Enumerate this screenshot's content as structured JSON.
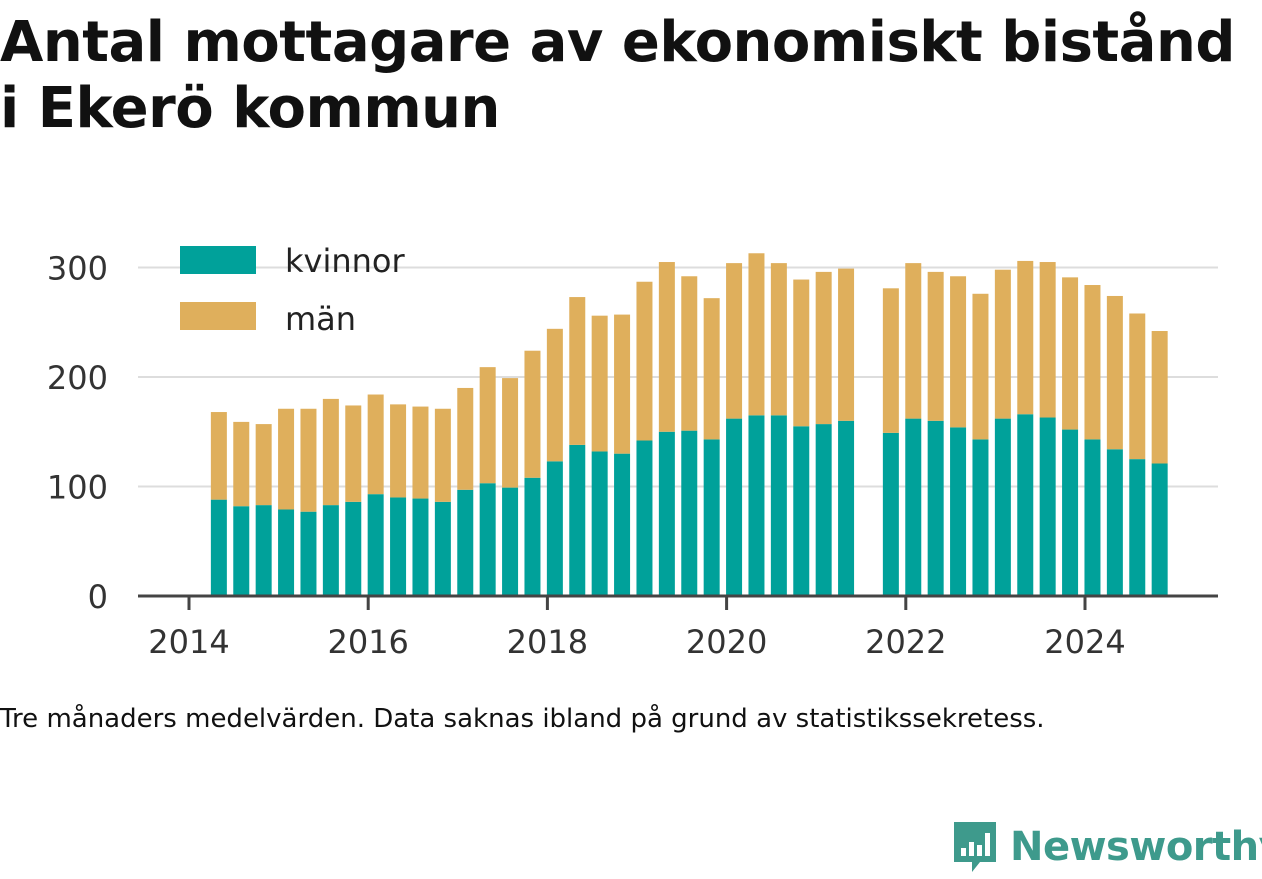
{
  "title": "Antal mottagare av ekonomiskt bistånd i Ekerö kommun",
  "caption": "Tre månaders medelvärden. Data saknas ibland på grund av statistikssekretess.",
  "brand": "Newsworthy",
  "colors": {
    "kvinnor": "#00a19a",
    "man": "#dfaf5c",
    "grid": "#dddddd",
    "axis": "#444444",
    "brand": "#3e9a8c"
  },
  "chart_data": {
    "type": "bar",
    "stacked": true,
    "x_ticks": [
      "2014",
      "2016",
      "2018",
      "2020",
      "2022",
      "2024"
    ],
    "y_ticks": [
      0,
      100,
      200,
      300
    ],
    "ylim": [
      0,
      330
    ],
    "grid": true,
    "legend_position": "top-left",
    "x": [
      "2014-05",
      "2014-08",
      "2014-11",
      "2015-02",
      "2015-05",
      "2015-08",
      "2015-11",
      "2016-02",
      "2016-05",
      "2016-08",
      "2016-11",
      "2017-02",
      "2017-05",
      "2017-08",
      "2017-11",
      "2018-02",
      "2018-05",
      "2018-08",
      "2018-11",
      "2019-02",
      "2019-05",
      "2019-08",
      "2019-11",
      "2020-02",
      "2020-05",
      "2020-08",
      "2020-11",
      "2021-02",
      "2021-05",
      "2021-08",
      "2021-11",
      "2022-02",
      "2022-05",
      "2022-08",
      "2022-11",
      "2023-02",
      "2023-05",
      "2023-08",
      "2023-11",
      "2024-02",
      "2024-05",
      "2024-08",
      "2024-11"
    ],
    "series": [
      {
        "name": "kvinnor",
        "values": [
          88,
          82,
          83,
          79,
          77,
          83,
          86,
          93,
          90,
          89,
          86,
          97,
          103,
          99,
          108,
          123,
          138,
          132,
          130,
          142,
          150,
          151,
          143,
          162,
          165,
          165,
          155,
          157,
          160,
          null,
          149,
          162,
          160,
          154,
          143,
          162,
          166,
          163,
          152,
          143,
          134,
          125,
          121
        ]
      },
      {
        "name": "män",
        "values": [
          80,
          77,
          74,
          92,
          94,
          97,
          88,
          91,
          85,
          84,
          85,
          93,
          106,
          100,
          116,
          121,
          135,
          124,
          127,
          145,
          155,
          141,
          129,
          142,
          148,
          139,
          134,
          139,
          139,
          null,
          132,
          142,
          136,
          138,
          133,
          136,
          140,
          142,
          139,
          141,
          140,
          133,
          121
        ]
      }
    ]
  }
}
